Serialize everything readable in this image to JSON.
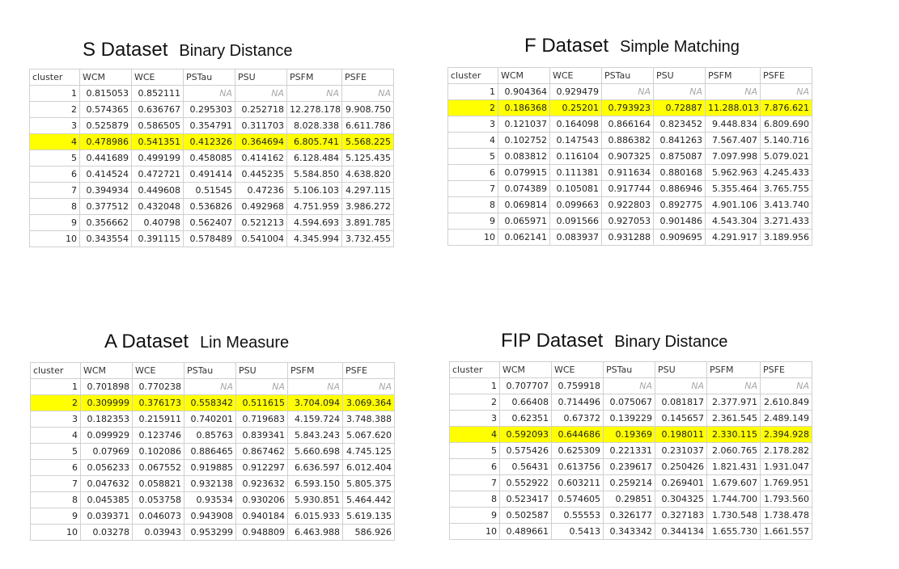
{
  "panels": [
    {
      "title": "S Dataset",
      "subtitle": "Binary Distance",
      "highlight_row": 4,
      "columns": [
        "cluster",
        "WCM",
        "WCE",
        "PSTau",
        "PSU",
        "PSFM",
        "PSFE"
      ],
      "rows": [
        [
          "1",
          "0.815053",
          "0.852111",
          "NA",
          "NA",
          "NA",
          "NA"
        ],
        [
          "2",
          "0.574365",
          "0.636767",
          "0.295303",
          "0.252718",
          "12.278.178",
          "9.908.750"
        ],
        [
          "3",
          "0.525879",
          "0.586505",
          "0.354791",
          "0.311703",
          "8.028.338",
          "6.611.786"
        ],
        [
          "4",
          "0.478986",
          "0.541351",
          "0.412326",
          "0.364694",
          "6.805.741",
          "5.568.225"
        ],
        [
          "5",
          "0.441689",
          "0.499199",
          "0.458085",
          "0.414162",
          "6.128.484",
          "5.125.435"
        ],
        [
          "6",
          "0.414524",
          "0.472721",
          "0.491414",
          "0.445235",
          "5.584.850",
          "4.638.820"
        ],
        [
          "7",
          "0.394934",
          "0.449608",
          "0.51545",
          "0.47236",
          "5.106.103",
          "4.297.115"
        ],
        [
          "8",
          "0.377512",
          "0.432048",
          "0.536826",
          "0.492968",
          "4.751.959",
          "3.986.272"
        ],
        [
          "9",
          "0.356662",
          "0.40798",
          "0.562407",
          "0.521213",
          "4.594.693",
          "3.891.785"
        ],
        [
          "10",
          "0.343554",
          "0.391115",
          "0.578489",
          "0.541004",
          "4.345.994",
          "3.732.455"
        ]
      ]
    },
    {
      "title": "F Dataset",
      "subtitle": "Simple Matching",
      "highlight_row": 2,
      "columns": [
        "cluster",
        "WCM",
        "WCE",
        "PSTau",
        "PSU",
        "PSFM",
        "PSFE"
      ],
      "rows": [
        [
          "1",
          "0.904364",
          "0.929479",
          "NA",
          "NA",
          "NA",
          "NA"
        ],
        [
          "2",
          "0.186368",
          "0.25201",
          "0.793923",
          "0.72887",
          "11.288.013",
          "7.876.621"
        ],
        [
          "3",
          "0.121037",
          "0.164098",
          "0.866164",
          "0.823452",
          "9.448.834",
          "6.809.690"
        ],
        [
          "4",
          "0.102752",
          "0.147543",
          "0.886382",
          "0.841263",
          "7.567.407",
          "5.140.716"
        ],
        [
          "5",
          "0.083812",
          "0.116104",
          "0.907325",
          "0.875087",
          "7.097.998",
          "5.079.021"
        ],
        [
          "6",
          "0.079915",
          "0.111381",
          "0.911634",
          "0.880168",
          "5.962.963",
          "4.245.433"
        ],
        [
          "7",
          "0.074389",
          "0.105081",
          "0.917744",
          "0.886946",
          "5.355.464",
          "3.765.755"
        ],
        [
          "8",
          "0.069814",
          "0.099663",
          "0.922803",
          "0.892775",
          "4.901.106",
          "3.413.740"
        ],
        [
          "9",
          "0.065971",
          "0.091566",
          "0.927053",
          "0.901486",
          "4.543.304",
          "3.271.433"
        ],
        [
          "10",
          "0.062141",
          "0.083937",
          "0.931288",
          "0.909695",
          "4.291.917",
          "3.189.956"
        ]
      ]
    },
    {
      "title": "A Dataset",
      "subtitle": "Lin Measure",
      "highlight_row": 2,
      "columns": [
        "cluster",
        "WCM",
        "WCE",
        "PSTau",
        "PSU",
        "PSFM",
        "PSFE"
      ],
      "rows": [
        [
          "1",
          "0.701898",
          "0.770238",
          "NA",
          "NA",
          "NA",
          "NA"
        ],
        [
          "2",
          "0.309999",
          "0.376173",
          "0.558342",
          "0.511615",
          "3.704.094",
          "3.069.364"
        ],
        [
          "3",
          "0.182353",
          "0.215911",
          "0.740201",
          "0.719683",
          "4.159.724",
          "3.748.388"
        ],
        [
          "4",
          "0.099929",
          "0.123746",
          "0.85763",
          "0.839341",
          "5.843.243",
          "5.067.620"
        ],
        [
          "5",
          "0.07969",
          "0.102086",
          "0.886465",
          "0.867462",
          "5.660.698",
          "4.745.125"
        ],
        [
          "6",
          "0.056233",
          "0.067552",
          "0.919885",
          "0.912297",
          "6.636.597",
          "6.012.404"
        ],
        [
          "7",
          "0.047632",
          "0.058821",
          "0.932138",
          "0.923632",
          "6.593.150",
          "5.805.375"
        ],
        [
          "8",
          "0.045385",
          "0.053758",
          "0.93534",
          "0.930206",
          "5.930.851",
          "5.464.442"
        ],
        [
          "9",
          "0.039371",
          "0.046073",
          "0.943908",
          "0.940184",
          "6.015.933",
          "5.619.135"
        ],
        [
          "10",
          "0.03278",
          "0.03943",
          "0.953299",
          "0.948809",
          "6.463.988",
          "586.926"
        ]
      ]
    },
    {
      "title": "FIP Dataset",
      "subtitle": "Binary Distance",
      "highlight_row": 4,
      "columns": [
        "cluster",
        "WCM",
        "WCE",
        "PSTau",
        "PSU",
        "PSFM",
        "PSFE"
      ],
      "rows": [
        [
          "1",
          "0.707707",
          "0.759918",
          "NA",
          "NA",
          "NA",
          "NA"
        ],
        [
          "2",
          "0.66408",
          "0.714496",
          "0.075067",
          "0.081817",
          "2.377.971",
          "2.610.849"
        ],
        [
          "3",
          "0.62351",
          "0.67372",
          "0.139229",
          "0.145657",
          "2.361.545",
          "2.489.149"
        ],
        [
          "4",
          "0.592093",
          "0.644686",
          "0.19369",
          "0.198011",
          "2.330.115",
          "2.394.928"
        ],
        [
          "5",
          "0.575426",
          "0.625309",
          "0.221331",
          "0.231037",
          "2.060.765",
          "2.178.282"
        ],
        [
          "6",
          "0.56431",
          "0.613756",
          "0.239617",
          "0.250426",
          "1.821.431",
          "1.931.047"
        ],
        [
          "7",
          "0.552922",
          "0.603211",
          "0.259214",
          "0.269401",
          "1.679.607",
          "1.769.951"
        ],
        [
          "8",
          "0.523417",
          "0.574605",
          "0.29851",
          "0.304325",
          "1.744.700",
          "1.793.560"
        ],
        [
          "9",
          "0.502587",
          "0.55553",
          "0.326177",
          "0.327183",
          "1.730.548",
          "1.738.478"
        ],
        [
          "10",
          "0.489661",
          "0.5413",
          "0.343342",
          "0.344134",
          "1.655.730",
          "1.661.557"
        ]
      ]
    }
  ]
}
